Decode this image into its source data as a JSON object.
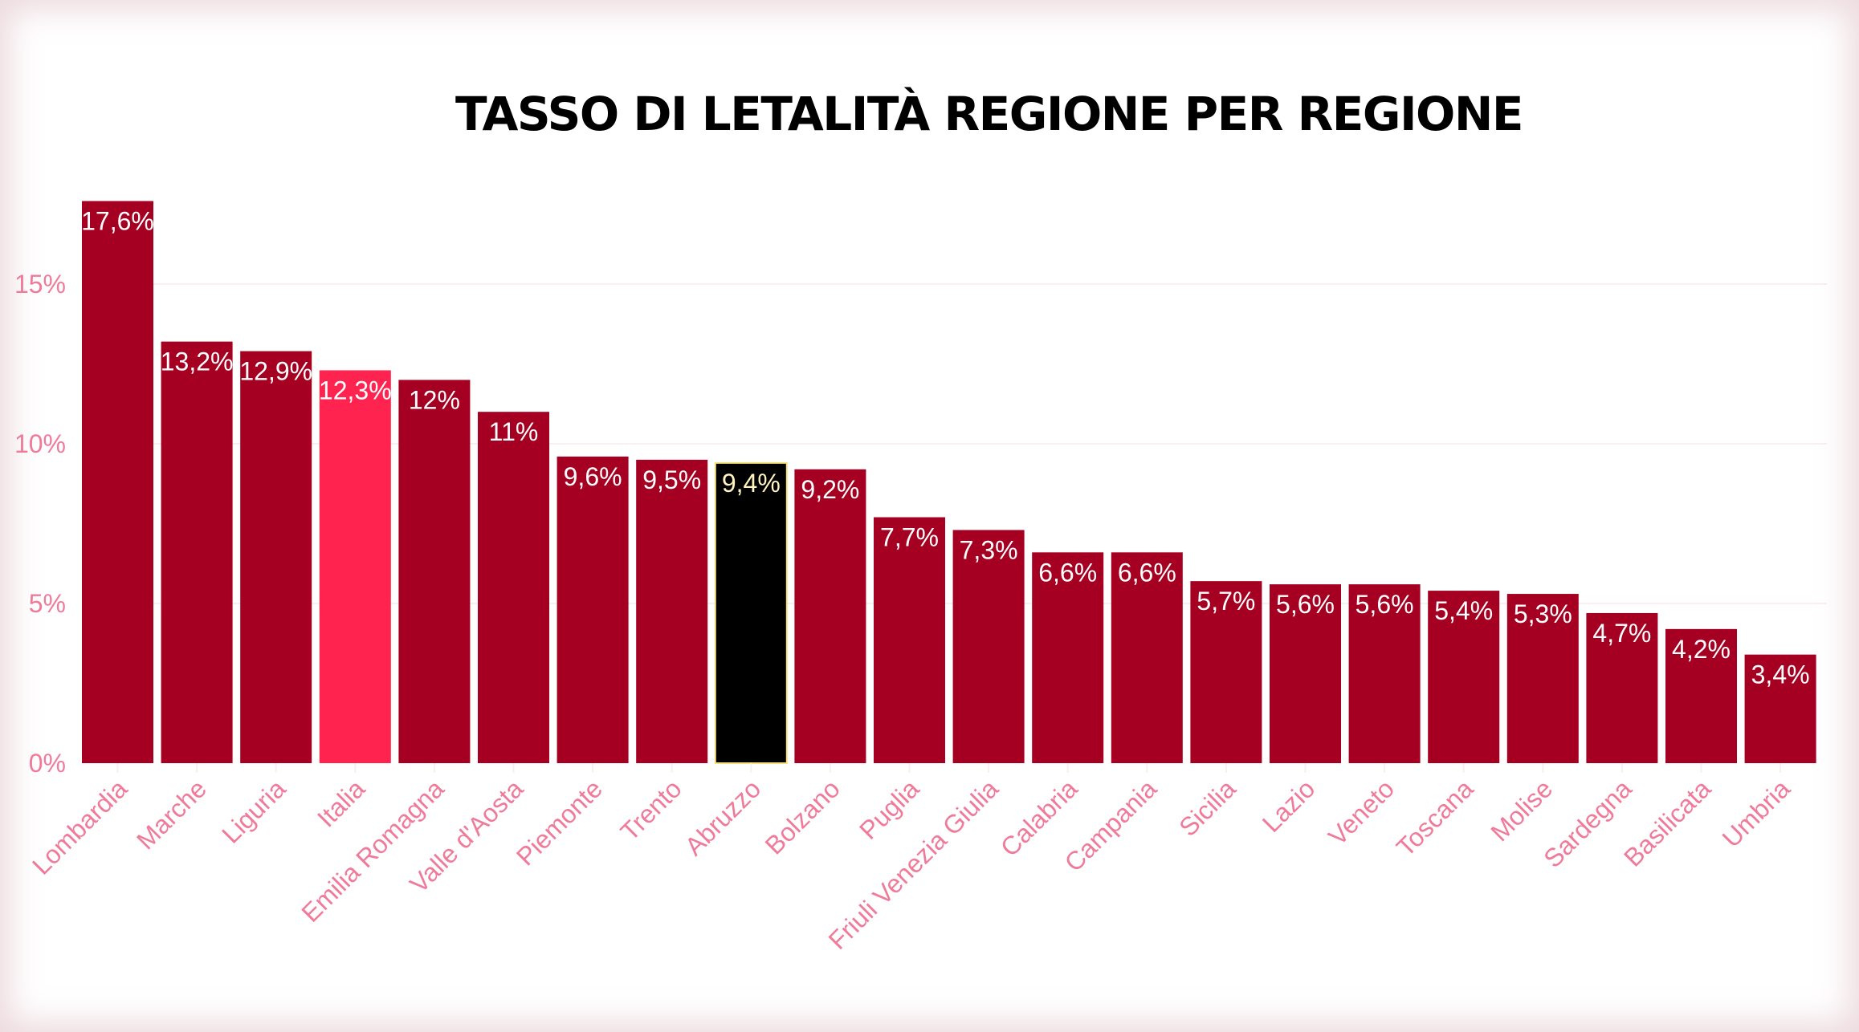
{
  "chart_data": {
    "type": "bar",
    "title": "TASSO DI LETALITÀ REGIONE PER REGIONE",
    "xlabel": "",
    "ylabel": "",
    "ylim": [
      0,
      17.6
    ],
    "yticks": [
      0,
      5,
      10,
      15
    ],
    "ytick_labels": [
      "0%",
      "5%",
      "10%",
      "15%"
    ],
    "grid": true,
    "categories": [
      "Lombardia",
      "Marche",
      "Liguria",
      "Italia",
      "Emilia Romagna",
      "Valle d'Aosta",
      "Piemonte",
      "Trento",
      "Abruzzo",
      "Bolzano",
      "Puglia",
      "Friuli Venezia Giulia",
      "Calabria",
      "Campania",
      "Sicilia",
      "Lazio",
      "Veneto",
      "Toscana",
      "Molise",
      "Sardegna",
      "Basilicata",
      "Umbria"
    ],
    "values": [
      17.6,
      13.2,
      12.9,
      12.3,
      12,
      11,
      9.6,
      9.5,
      9.4,
      9.2,
      7.7,
      7.3,
      6.6,
      6.6,
      5.7,
      5.6,
      5.6,
      5.4,
      5.3,
      4.7,
      4.2,
      3.4
    ],
    "value_labels": [
      "17,6%",
      "13,2%",
      "12,9%",
      "12,3%",
      "12%",
      "11%",
      "9,6%",
      "9,5%",
      "9,4%",
      "9,2%",
      "7,7%",
      "7,3%",
      "6,6%",
      "6,6%",
      "5,7%",
      "5,6%",
      "5,6%",
      "5,4%",
      "5,3%",
      "4,7%",
      "4,2%",
      "3,4%"
    ],
    "highlight": {
      "Italia": "#ff2350",
      "Abruzzo": "#000000"
    },
    "colors": {
      "bar": "#a50021",
      "tick": "#f07a99",
      "grid": "#fbeef0",
      "label": "#ffffff",
      "highlight_label": "#fff3c0"
    }
  }
}
